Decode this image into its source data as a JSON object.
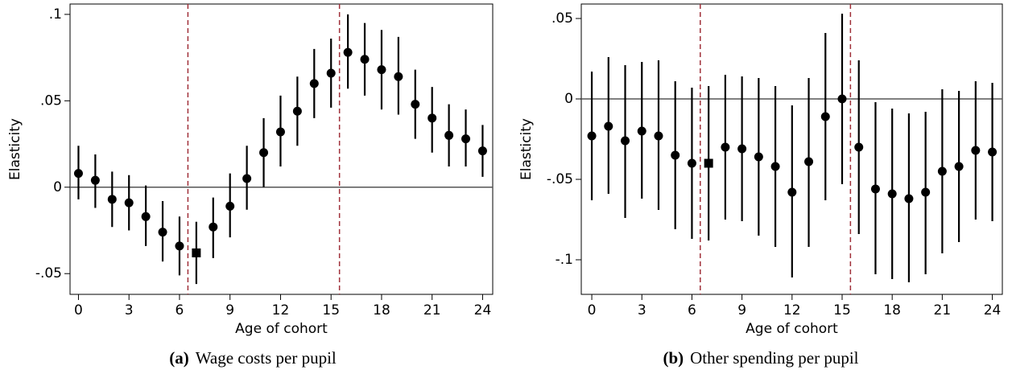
{
  "chart_data": [
    {
      "type": "errorbar",
      "caption_label": "(a)",
      "caption": "Wage costs per pupil",
      "xlabel": "Age of cohort",
      "ylabel": "Elasticity",
      "x": [
        0,
        1,
        2,
        3,
        4,
        5,
        6,
        7,
        8,
        9,
        10,
        11,
        12,
        13,
        14,
        15,
        16,
        17,
        18,
        19,
        20,
        21,
        22,
        23,
        24
      ],
      "values": [
        0.008,
        0.004,
        -0.007,
        -0.009,
        -0.017,
        -0.026,
        -0.034,
        -0.038,
        -0.023,
        -0.011,
        0.005,
        0.02,
        0.032,
        0.044,
        0.06,
        0.066,
        0.078,
        0.074,
        0.068,
        0.064,
        0.048,
        0.04,
        0.03,
        0.028,
        0.021
      ],
      "lower": [
        -0.007,
        -0.012,
        -0.023,
        -0.025,
        -0.034,
        -0.043,
        -0.051,
        -0.056,
        -0.041,
        -0.029,
        -0.013,
        0.0,
        0.012,
        0.024,
        0.04,
        0.046,
        0.057,
        0.053,
        0.045,
        0.042,
        0.028,
        0.02,
        0.012,
        0.012,
        0.006
      ],
      "upper": [
        0.024,
        0.019,
        0.009,
        0.007,
        0.001,
        -0.008,
        -0.017,
        -0.02,
        -0.006,
        0.008,
        0.024,
        0.04,
        0.053,
        0.064,
        0.08,
        0.086,
        0.1,
        0.095,
        0.091,
        0.087,
        0.068,
        0.058,
        0.048,
        0.045,
        0.036
      ],
      "square_at": 7,
      "color": "#000000",
      "vlines": [
        6.5,
        15.5
      ],
      "vline_color": "#a0303a",
      "hline": 0,
      "xlim": [
        -0.5,
        24.6
      ],
      "ylim": [
        -0.062,
        0.106
      ],
      "xticks": [
        0,
        3,
        6,
        9,
        12,
        15,
        18,
        21,
        24
      ],
      "yticks": [
        {
          "value": -0.05,
          "label": "-.05"
        },
        0,
        {
          "value": 0.05,
          "label": ".05"
        },
        {
          "value": 0.1,
          "label": ".1"
        }
      ]
    },
    {
      "type": "errorbar",
      "caption_label": "(b)",
      "caption": "Other spending per pupil",
      "xlabel": "Age of cohort",
      "ylabel": "Elasticity",
      "x": [
        0,
        1,
        2,
        3,
        4,
        5,
        6,
        7,
        8,
        9,
        10,
        11,
        12,
        13,
        14,
        15,
        16,
        17,
        18,
        19,
        20,
        21,
        22,
        23,
        24
      ],
      "values": [
        -0.023,
        -0.017,
        -0.026,
        -0.02,
        -0.023,
        -0.035,
        -0.04,
        -0.04,
        -0.03,
        -0.031,
        -0.036,
        -0.042,
        -0.058,
        -0.039,
        -0.011,
        0.0,
        -0.03,
        -0.056,
        -0.059,
        -0.062,
        -0.058,
        -0.045,
        -0.042,
        -0.032,
        -0.033
      ],
      "lower": [
        -0.063,
        -0.059,
        -0.074,
        -0.062,
        -0.069,
        -0.081,
        -0.087,
        -0.088,
        -0.075,
        -0.076,
        -0.085,
        -0.092,
        -0.111,
        -0.092,
        -0.063,
        -0.053,
        -0.084,
        -0.109,
        -0.112,
        -0.114,
        -0.109,
        -0.096,
        -0.089,
        -0.075,
        -0.076
      ],
      "upper": [
        0.017,
        0.026,
        0.021,
        0.023,
        0.024,
        0.011,
        0.007,
        0.008,
        0.015,
        0.014,
        0.013,
        0.008,
        -0.004,
        0.013,
        0.041,
        0.053,
        0.024,
        -0.002,
        -0.006,
        -0.009,
        -0.008,
        0.006,
        0.005,
        0.011,
        0.01
      ],
      "square_at": 7,
      "color": "#000000",
      "vlines": [
        6.5,
        15.5
      ],
      "vline_color": "#a0303a",
      "hline": 0,
      "xlim": [
        -0.63,
        24.6
      ],
      "ylim": [
        -0.1215,
        0.059
      ],
      "xticks": [
        0,
        3,
        6,
        9,
        12,
        15,
        18,
        21,
        24
      ],
      "yticks": [
        {
          "value": -0.1,
          "label": "-.1"
        },
        {
          "value": -0.05,
          "label": "-.05"
        },
        0,
        {
          "value": 0.05,
          "label": ".05"
        }
      ]
    }
  ]
}
